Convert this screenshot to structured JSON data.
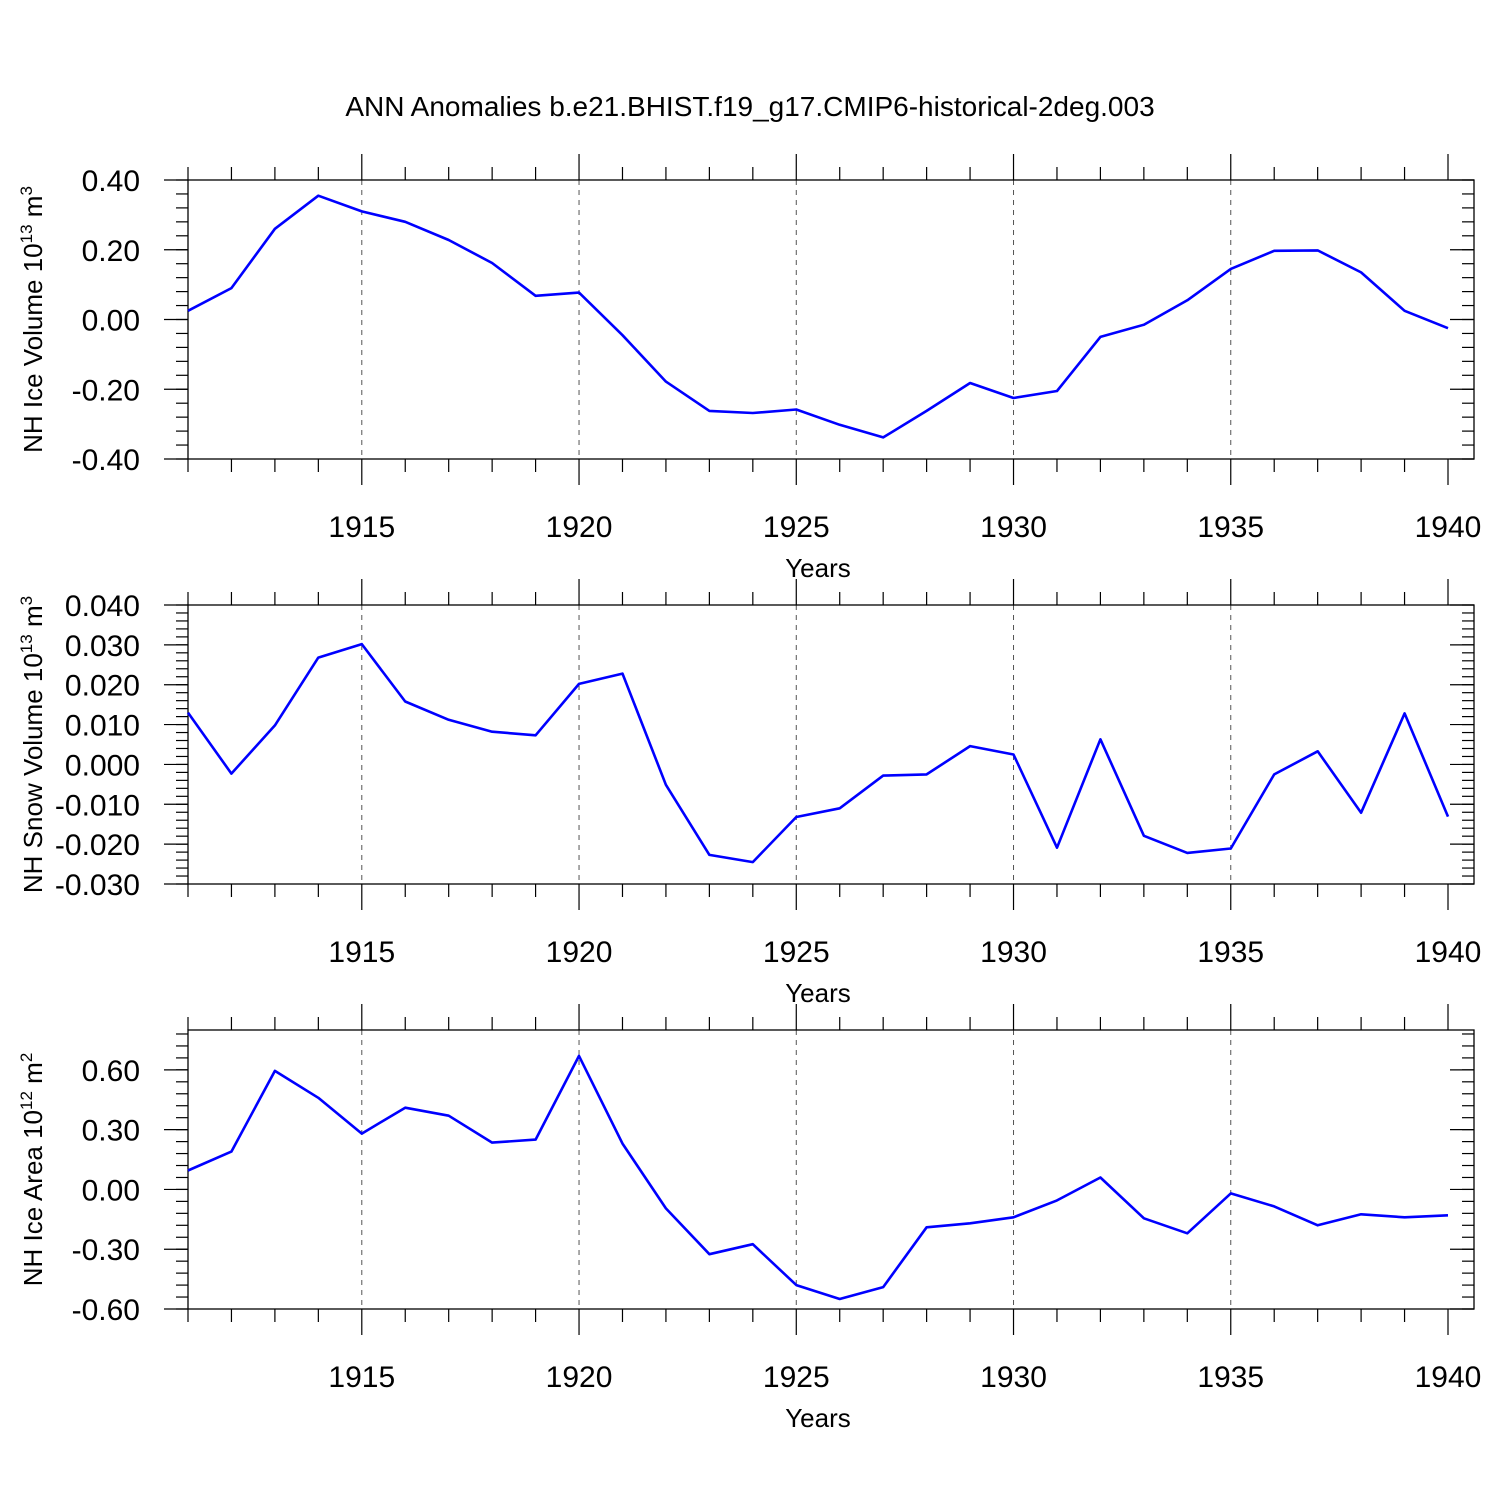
{
  "title": "ANN Anomalies b.e21.BHIST.f19_g17.CMIP6-historical-2deg.003",
  "colors": {
    "line": "#0000ff",
    "axes": "#000000",
    "grid": "#555555"
  },
  "chart_data": [
    {
      "type": "line",
      "xlabel": "Years",
      "ylabel": {
        "base": "NH Ice Volume 10",
        "exp1": "13",
        "mid": " m",
        "exp2": "3"
      },
      "xlim": [
        1911,
        1940
      ],
      "ylim": [
        -0.4,
        0.4
      ],
      "x_ticks": [
        "1915",
        "1920",
        "1925",
        "1930",
        "1935",
        "1940"
      ],
      "y_ticks": [
        "0.40",
        "0.20",
        "0.00",
        "-0.20",
        "-0.40"
      ],
      "y_tick_values": [
        0.4,
        0.2,
        0.0,
        -0.2,
        -0.4
      ],
      "grid_x": [
        1915,
        1920,
        1925,
        1930,
        1935
      ],
      "x": [
        1911,
        1912,
        1913,
        1914,
        1915,
        1916,
        1917,
        1918,
        1919,
        1920,
        1921,
        1922,
        1923,
        1924,
        1925,
        1926,
        1927,
        1928,
        1929,
        1930,
        1931,
        1932,
        1933,
        1934,
        1935,
        1936,
        1937,
        1938,
        1939,
        1940
      ],
      "values": [
        0.025,
        0.09,
        0.26,
        0.355,
        0.31,
        0.28,
        0.228,
        0.162,
        0.068,
        0.077,
        -0.045,
        -0.178,
        -0.262,
        -0.268,
        -0.258,
        -0.302,
        -0.338,
        -0.262,
        -0.182,
        -0.225,
        -0.205,
        -0.05,
        -0.015,
        0.055,
        0.145,
        0.197,
        0.198,
        0.135,
        0.025,
        -0.025
      ]
    },
    {
      "type": "line",
      "xlabel": "Years",
      "ylabel": {
        "base": "NH Snow Volume 10",
        "exp1": "13",
        "mid": " m",
        "exp2": "3"
      },
      "xlim": [
        1911,
        1940
      ],
      "ylim": [
        -0.03,
        0.04
      ],
      "x_ticks": [
        "1915",
        "1920",
        "1925",
        "1930",
        "1935",
        "1940"
      ],
      "y_ticks": [
        "0.040",
        "0.030",
        "0.020",
        "0.010",
        "0.000",
        "-0.010",
        "-0.020",
        "-0.030"
      ],
      "y_tick_values": [
        0.04,
        0.03,
        0.02,
        0.01,
        0.0,
        -0.01,
        -0.02,
        -0.03
      ],
      "grid_x": [
        1915,
        1920,
        1925,
        1930,
        1935
      ],
      "x": [
        1911,
        1912,
        1913,
        1914,
        1915,
        1916,
        1917,
        1918,
        1919,
        1920,
        1921,
        1922,
        1923,
        1924,
        1925,
        1926,
        1927,
        1928,
        1929,
        1930,
        1931,
        1932,
        1933,
        1934,
        1935,
        1936,
        1937,
        1938,
        1939,
        1940
      ],
      "values": [
        0.013,
        -0.0023,
        0.0098,
        0.0268,
        0.0302,
        0.0158,
        0.0112,
        0.0082,
        0.0073,
        0.0202,
        0.0228,
        -0.0051,
        -0.0227,
        -0.0245,
        -0.0132,
        -0.011,
        -0.0028,
        -0.0025,
        0.0046,
        0.0025,
        -0.0209,
        0.0063,
        -0.0179,
        -0.0222,
        -0.0211,
        -0.0025,
        0.0033,
        -0.0121,
        0.0128,
        -0.0131
      ]
    },
    {
      "type": "line",
      "xlabel": "Years",
      "ylabel": {
        "base": "NH Ice Area 10",
        "exp1": "12",
        "mid": " m",
        "exp2": "2"
      },
      "xlim": [
        1911,
        1940
      ],
      "ylim": [
        -0.6,
        0.8
      ],
      "x_ticks": [
        "1915",
        "1920",
        "1925",
        "1930",
        "1935",
        "1940"
      ],
      "y_ticks": [
        "0.60",
        "0.30",
        "0.00",
        "-0.30",
        "-0.60"
      ],
      "y_tick_values": [
        0.6,
        0.3,
        0.0,
        -0.3,
        -0.6
      ],
      "grid_x": [
        1915,
        1920,
        1925,
        1930,
        1935
      ],
      "x": [
        1911,
        1912,
        1913,
        1914,
        1915,
        1916,
        1917,
        1918,
        1919,
        1920,
        1921,
        1922,
        1923,
        1924,
        1925,
        1926,
        1927,
        1928,
        1929,
        1930,
        1931,
        1932,
        1933,
        1934,
        1935,
        1936,
        1937,
        1938,
        1939,
        1940
      ],
      "values": [
        0.095,
        0.19,
        0.595,
        0.46,
        0.28,
        0.41,
        0.37,
        0.235,
        0.25,
        0.67,
        0.23,
        -0.095,
        -0.325,
        -0.275,
        -0.48,
        -0.55,
        -0.49,
        -0.19,
        -0.17,
        -0.14,
        -0.055,
        0.06,
        -0.145,
        -0.22,
        -0.02,
        -0.085,
        -0.18,
        -0.125,
        -0.14,
        -0.13
      ]
    }
  ]
}
